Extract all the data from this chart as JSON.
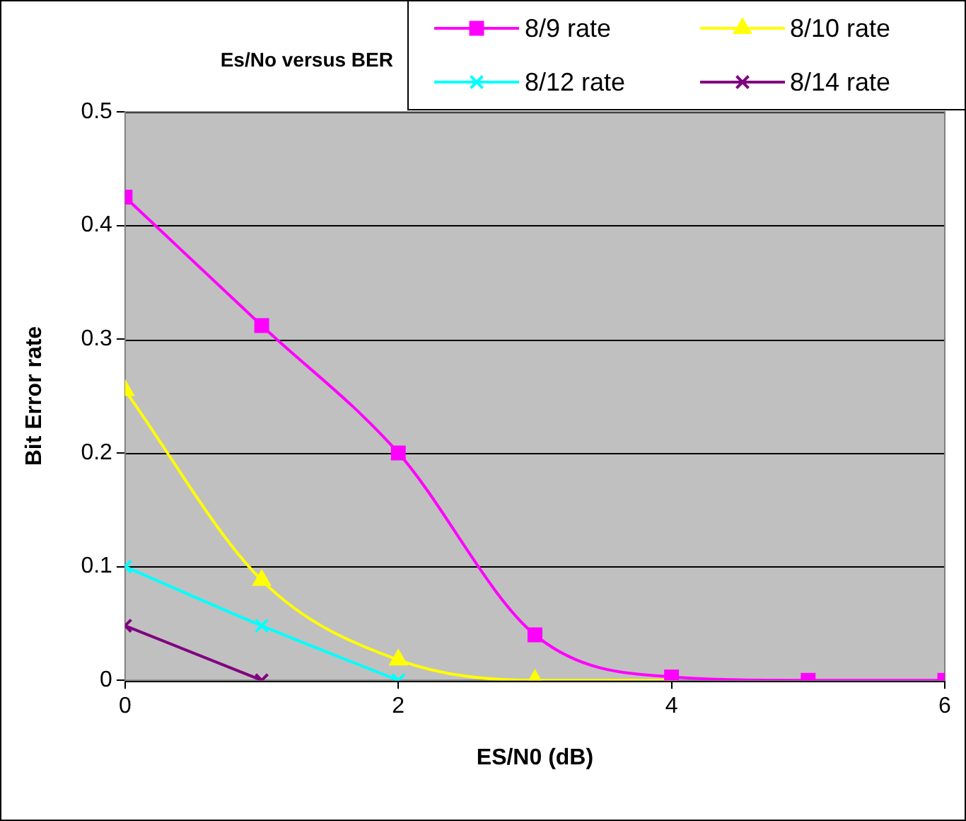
{
  "chart_data": {
    "type": "line",
    "title": "Es/No versus BER",
    "xlabel": "ES/N0 (dB)",
    "ylabel": "Bit Error rate",
    "x": [
      0,
      1,
      2,
      3,
      4,
      5,
      6
    ],
    "series": [
      {
        "name": "8/9 rate",
        "color": "#ff00ff",
        "marker": "square",
        "values": [
          0.425,
          0.312,
          0.2,
          0.04,
          0.003,
          0,
          0
        ]
      },
      {
        "name": "8/10 rate",
        "color": "#ffff00",
        "marker": "triangle",
        "values": [
          0.255,
          0.088,
          0.018,
          0,
          0,
          null,
          null
        ]
      },
      {
        "name": "8/12 rate",
        "color": "#00ffff",
        "marker": "cross",
        "values": [
          0.1,
          0.048,
          0,
          null,
          null,
          null,
          null
        ]
      },
      {
        "name": "8/14 rate",
        "color": "#800080",
        "marker": "cross",
        "values": [
          0.048,
          0,
          null,
          null,
          null,
          null,
          null
        ]
      }
    ],
    "xlim": [
      0,
      6
    ],
    "xticks": [
      0,
      2,
      4,
      6
    ],
    "ylim": [
      0,
      0.5
    ],
    "yticks": [
      0,
      0.1,
      0.2,
      0.3,
      0.4,
      0.5
    ],
    "grid": "y",
    "legend": "top right",
    "line_style": "solid"
  }
}
